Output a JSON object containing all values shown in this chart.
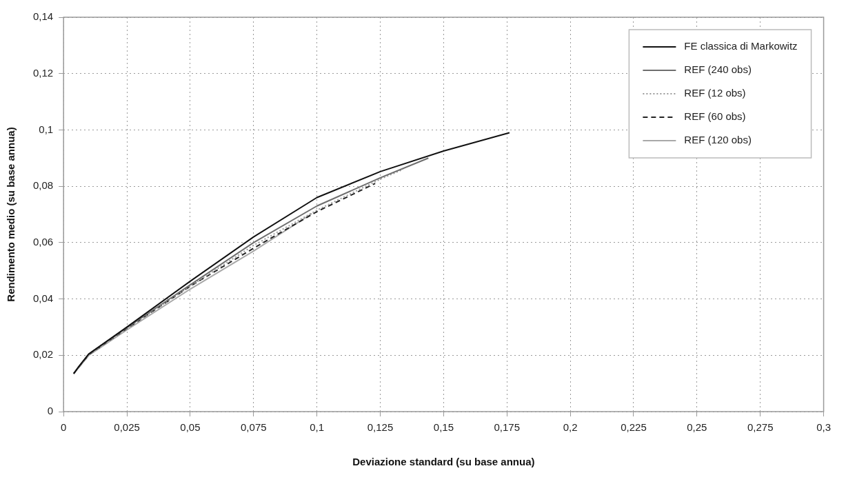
{
  "chart_data": {
    "type": "line",
    "xlabel": "Deviazione standard (su base annua)",
    "ylabel": "Rendimento medio (su base annua)",
    "xlim": [
      0,
      0.3
    ],
    "ylim": [
      0,
      0.14
    ],
    "xticks": [
      0,
      {
        "value": 0.025,
        "label": "0,025"
      },
      {
        "value": 0.05,
        "label": "0,05"
      },
      {
        "value": 0.075,
        "label": "0,075"
      },
      {
        "value": 0.1,
        "label": "0,1"
      },
      {
        "value": 0.125,
        "label": "0,125"
      },
      {
        "value": 0.15,
        "label": "0,15"
      },
      {
        "value": 0.175,
        "label": "0,175"
      },
      {
        "value": 0.2,
        "label": "0,2"
      },
      {
        "value": 0.225,
        "label": "0,225"
      },
      {
        "value": 0.25,
        "label": "0,25"
      },
      {
        "value": 0.275,
        "label": "0,275"
      },
      {
        "value": 0.3,
        "label": "0,3"
      }
    ],
    "yticks": [
      0,
      {
        "value": 0.02,
        "label": "0,02"
      },
      {
        "value": 0.04,
        "label": "0,04"
      },
      {
        "value": 0.06,
        "label": "0,06"
      },
      {
        "value": 0.08,
        "label": "0,08"
      },
      {
        "value": 0.1,
        "label": "0,1"
      },
      {
        "value": 0.12,
        "label": "0,12"
      },
      {
        "value": 0.14,
        "label": "0,14"
      }
    ],
    "grid": true,
    "legend": "top right",
    "marker": "none",
    "series": [
      {
        "name": "FE classica di Markowitz",
        "color": "#111111",
        "line_style": "solid",
        "x": [
          0.004,
          0.006,
          0.01,
          0.025,
          0.05,
          0.075,
          0.1,
          0.125,
          0.15,
          0.176
        ],
        "values": [
          0.0135,
          0.016,
          0.0205,
          0.03,
          0.0463,
          0.062,
          0.076,
          0.0852,
          0.0925,
          0.099
        ]
      },
      {
        "name": "REF (240 obs)",
        "color": "#6e6e6e",
        "line_style": "solid",
        "x": [
          0.004,
          0.01,
          0.025,
          0.05,
          0.075,
          0.1,
          0.125,
          0.144
        ],
        "values": [
          0.0135,
          0.0205,
          0.0298,
          0.045,
          0.06,
          0.073,
          0.083,
          0.09
        ]
      },
      {
        "name": "REF (12 obs)",
        "color": "#9a9a9a",
        "line_style": "dotted",
        "x": [
          0.004,
          0.01,
          0.025,
          0.05,
          0.075,
          0.1,
          0.125,
          0.134
        ],
        "values": [
          0.0135,
          0.0203,
          0.0296,
          0.0445,
          0.059,
          0.0715,
          0.0825,
          0.086
        ]
      },
      {
        "name": "REF (60 obs)",
        "color": "#222222",
        "line_style": "dashed",
        "x": [
          0.004,
          0.01,
          0.025,
          0.05,
          0.075,
          0.1,
          0.123
        ],
        "values": [
          0.0135,
          0.0203,
          0.0295,
          0.0445,
          0.058,
          0.071,
          0.081
        ]
      },
      {
        "name": "REF (120 obs)",
        "color": "#a8a8a8",
        "line_style": "solid",
        "x": [
          0.004,
          0.01,
          0.025,
          0.05,
          0.075,
          0.098
        ],
        "values": [
          0.0135,
          0.02,
          0.029,
          0.0435,
          0.057,
          0.0703
        ]
      }
    ]
  }
}
